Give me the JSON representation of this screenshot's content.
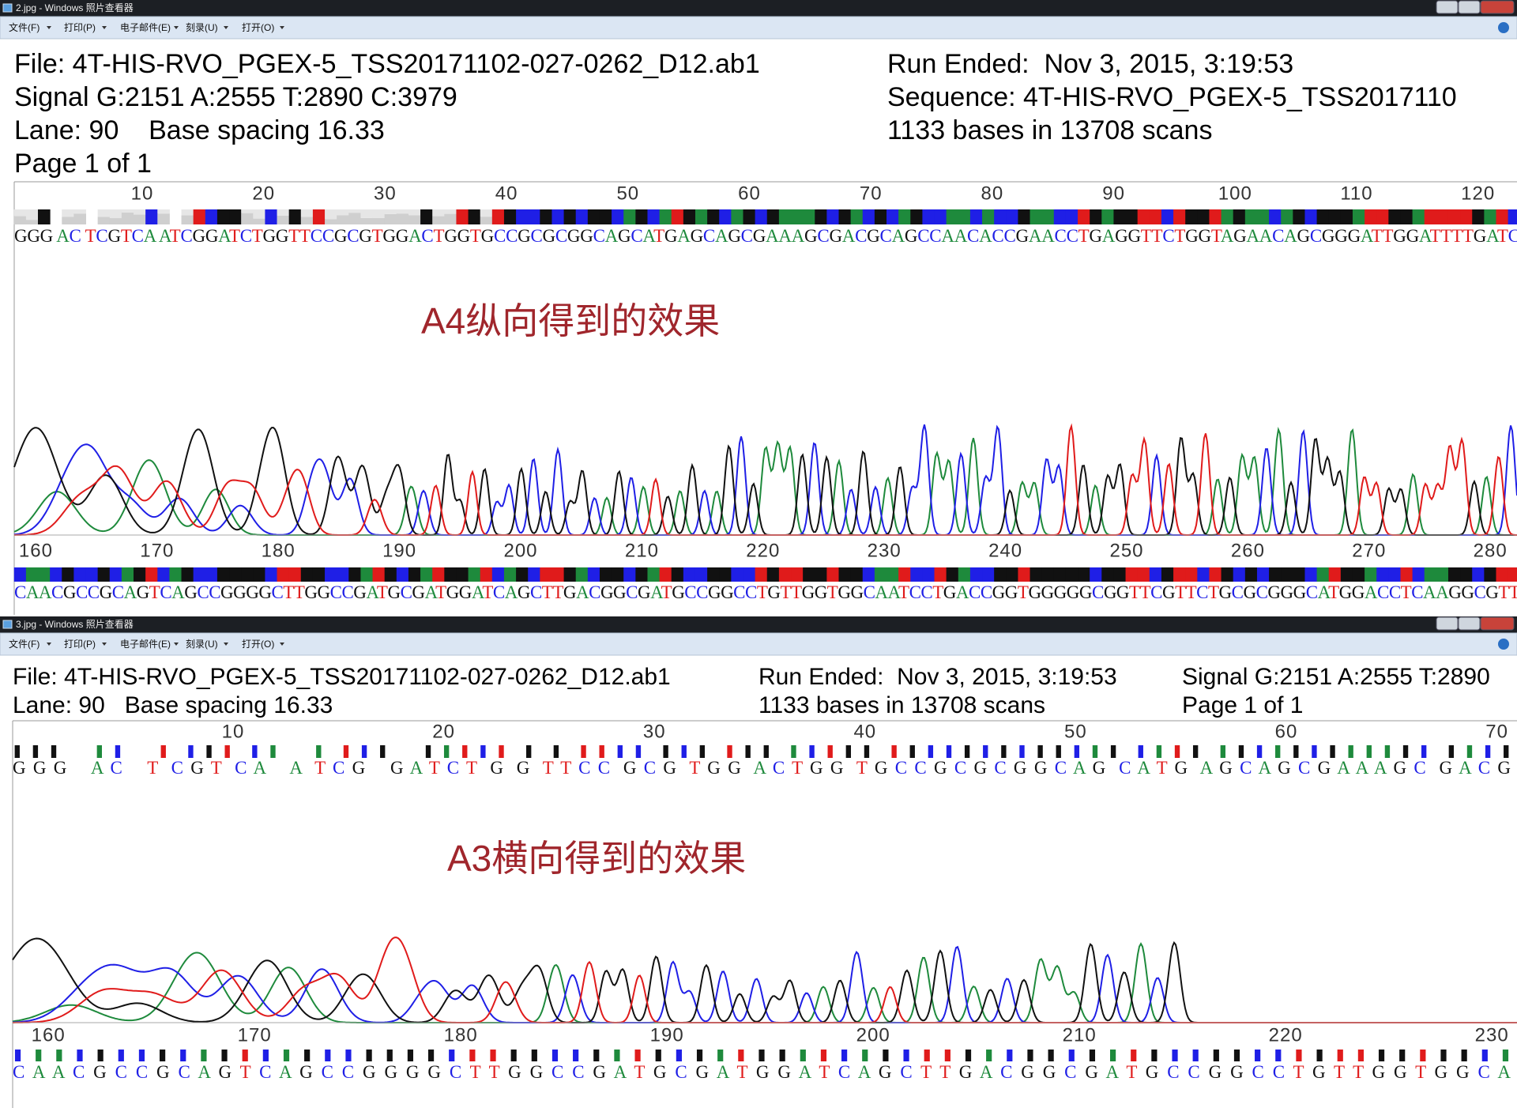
{
  "windows": [
    {
      "title_bar": "2.jpg - Windows 照片查看器",
      "menu": [
        "文件(F)",
        "打印(P)",
        "电子邮件(E)",
        "刻录(U)",
        "打开(O)"
      ],
      "header_columns": [
        [
          "File: 4T-HIS-RVO_PGEX-5_TSS20171102-027-0262_D12.ab1",
          "Signal G:2151 A:2555 T:2890 C:3979",
          "Lane: 90    Base spacing 16.33",
          "Page 1 of 1"
        ],
        [
          "Run Ended:  Nov 3, 2015, 3:19:53",
          "Sequence: 4T-HIS-RVO_PGEX-5_TSS2017110",
          "1133 bases in 13708 scans"
        ]
      ],
      "annotation": "A4纵向得到的效果",
      "rows": [
        {
          "ruler": [
            10,
            20,
            30,
            40,
            50,
            60,
            70,
            80,
            90,
            100,
            110,
            120
          ],
          "sequence": "GGG AC TCGTCA ATCGGATCTGGTTCCGCGTGGACTGGTGCCGCGCGGCAGCATGAGCAGCGAAAGCGACGCAGCCAACACCGAACCTGAGGTTCTGGTAGAACAGCGGGATTGGATTTTGATC"
        },
        {
          "ruler": [
            160,
            170,
            180,
            190,
            200,
            210,
            220,
            230,
            240,
            250,
            260,
            270,
            280
          ],
          "sequence": "CAACGCCGCAGTCAGCCGGGGCTTGGCCGATGCGATGGATCAGCTTGACGGCGATGCCGGCCTGTTGGTGGCAATCCTGACCGGTGGGGGCGGTTCGTTCTGCGCGGGCATGGACCTCAAGGCGTT"
        }
      ]
    },
    {
      "title_bar": "3.jpg - Windows 照片查看器",
      "menu": [
        "文件(F)",
        "打印(P)",
        "电子邮件(E)",
        "刻录(U)",
        "打开(O)"
      ],
      "header_columns": [
        [
          "File: 4T-HIS-RVO_PGEX-5_TSS20171102-027-0262_D12.ab1",
          "Lane: 90   Base spacing 16.33"
        ],
        [
          "Run Ended:  Nov 3, 2015, 3:19:53",
          "1133 bases in 13708 scans"
        ],
        [
          "Signal G:2151 A:2555 T:2890",
          "Page 1 of 1"
        ]
      ],
      "annotation": "A3横向得到的效果",
      "rows": [
        {
          "ruler": [
            10,
            20,
            30,
            40,
            50,
            60,
            70
          ],
          "sequence": "G G G    A C    T  C G T  C A    A  T C G    G A T C T  G  G  T T C C  G C G  T G G  A C T G G  T G C C G C G C G G C A G  C A T G  A G C A G C G A A A G C  G A C G"
        },
        {
          "ruler": [
            160,
            170,
            180,
            190,
            200,
            210,
            220,
            230
          ],
          "sequence": "C A A C G C C G C A G T C A G C C G G G G C T T G G C C G A T G C G A T G G A T C A G C T T G A C G G C G A T G C C G G C C T G T T G G T G G C A"
        }
      ]
    }
  ],
  "base_colors": {
    "A": "#1e8a3c",
    "C": "#1f1fe6",
    "G": "#111111",
    "T": "#e01b1b"
  }
}
